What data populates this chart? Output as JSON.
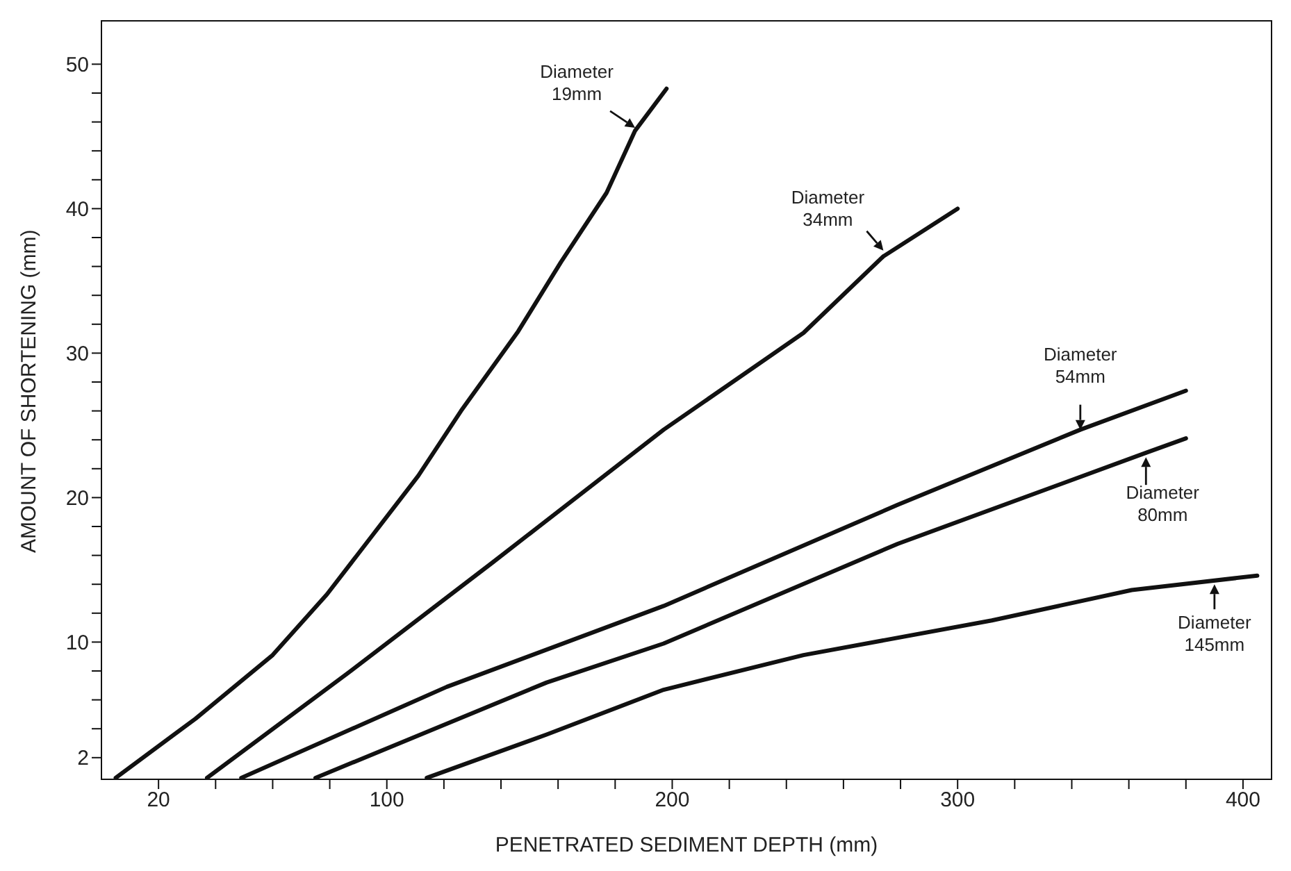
{
  "chart_data": {
    "type": "line",
    "xlabel": "PENETRATED SEDIMENT DEPTH (mm)",
    "ylabel": "AMOUNT OF SHORTENING (mm)",
    "xlim": [
      0,
      410
    ],
    "ylim": [
      0.5,
      53
    ],
    "xticks": [
      20,
      {
        "value": 40,
        "label": null
      },
      {
        "value": 60,
        "label": null
      },
      {
        "value": 80,
        "label": null
      },
      100,
      {
        "value": 120,
        "label": null
      },
      {
        "value": 140,
        "label": null
      },
      {
        "value": 160,
        "label": null
      },
      {
        "value": 180,
        "label": null
      },
      200,
      {
        "value": 220,
        "label": null
      },
      {
        "value": 240,
        "label": null
      },
      {
        "value": 260,
        "label": null
      },
      {
        "value": 280,
        "label": null
      },
      300,
      {
        "value": 320,
        "label": null
      },
      {
        "value": 340,
        "label": null
      },
      {
        "value": 360,
        "label": null
      },
      {
        "value": 380,
        "label": null
      },
      400
    ],
    "yticks": [
      2,
      {
        "value": 4,
        "label": null
      },
      {
        "value": 6,
        "label": null
      },
      {
        "value": 8,
        "label": null
      },
      10,
      {
        "value": 12,
        "label": null
      },
      {
        "value": 14,
        "label": null
      },
      {
        "value": 16,
        "label": null
      },
      {
        "value": 18,
        "label": null
      },
      20,
      {
        "value": 22,
        "label": null
      },
      {
        "value": 24,
        "label": null
      },
      {
        "value": 26,
        "label": null
      },
      {
        "value": 28,
        "label": null
      },
      30,
      {
        "value": 32,
        "label": null
      },
      {
        "value": 34,
        "label": null
      },
      {
        "value": 36,
        "label": null
      },
      {
        "value": 38,
        "label": null
      },
      40,
      {
        "value": 42,
        "label": null
      },
      {
        "value": 44,
        "label": null
      },
      {
        "value": 46,
        "label": null
      },
      {
        "value": 48,
        "label": null
      },
      50
    ],
    "marker": "none",
    "line_style": "solid",
    "series": [
      {
        "color": "#111111",
        "x": [
          5,
          33,
          60,
          79,
          95,
          111,
          126,
          146,
          161,
          177,
          187,
          198
        ],
        "values": [
          0.6,
          4.7,
          9.1,
          13.3,
          17.4,
          21.5,
          26,
          31.5,
          36.3,
          41.1,
          45.4,
          48.3
        ]
      },
      {
        "color": "#111111",
        "x": [
          37,
          86,
          137,
          197,
          246,
          274,
          300
        ],
        "values": [
          0.6,
          7.8,
          15.5,
          24.7,
          31.4,
          36.7,
          40
        ]
      },
      {
        "color": "#111111",
        "x": [
          49,
          121,
          197,
          279,
          343,
          380
        ],
        "values": [
          0.6,
          6.9,
          12.5,
          19.5,
          24.7,
          27.4
        ]
      },
      {
        "color": "#111111",
        "x": [
          75,
          156,
          197,
          279,
          366,
          380
        ],
        "values": [
          0.6,
          7.2,
          9.9,
          16.8,
          23.1,
          24.1
        ]
      },
      {
        "color": "#111111",
        "x": [
          114,
          156,
          197,
          246,
          312,
          361,
          405
        ],
        "values": [
          0.6,
          3.6,
          6.7,
          9.1,
          11.5,
          13.6,
          14.6
        ]
      }
    ],
    "annotations": [
      {
        "text": "Diameter 19mm",
        "x": 187,
        "y": 45.6
      },
      {
        "text": "Diameter 34mm",
        "x": 274,
        "y": 37.1
      },
      {
        "text": "Diameter 54mm",
        "x": 343,
        "y": 24.7
      },
      {
        "text": "Diameter 80mm",
        "x": 366,
        "y": 22.8
      },
      {
        "text": "Diameter 145mm",
        "x": 390,
        "y": 14
      }
    ]
  }
}
